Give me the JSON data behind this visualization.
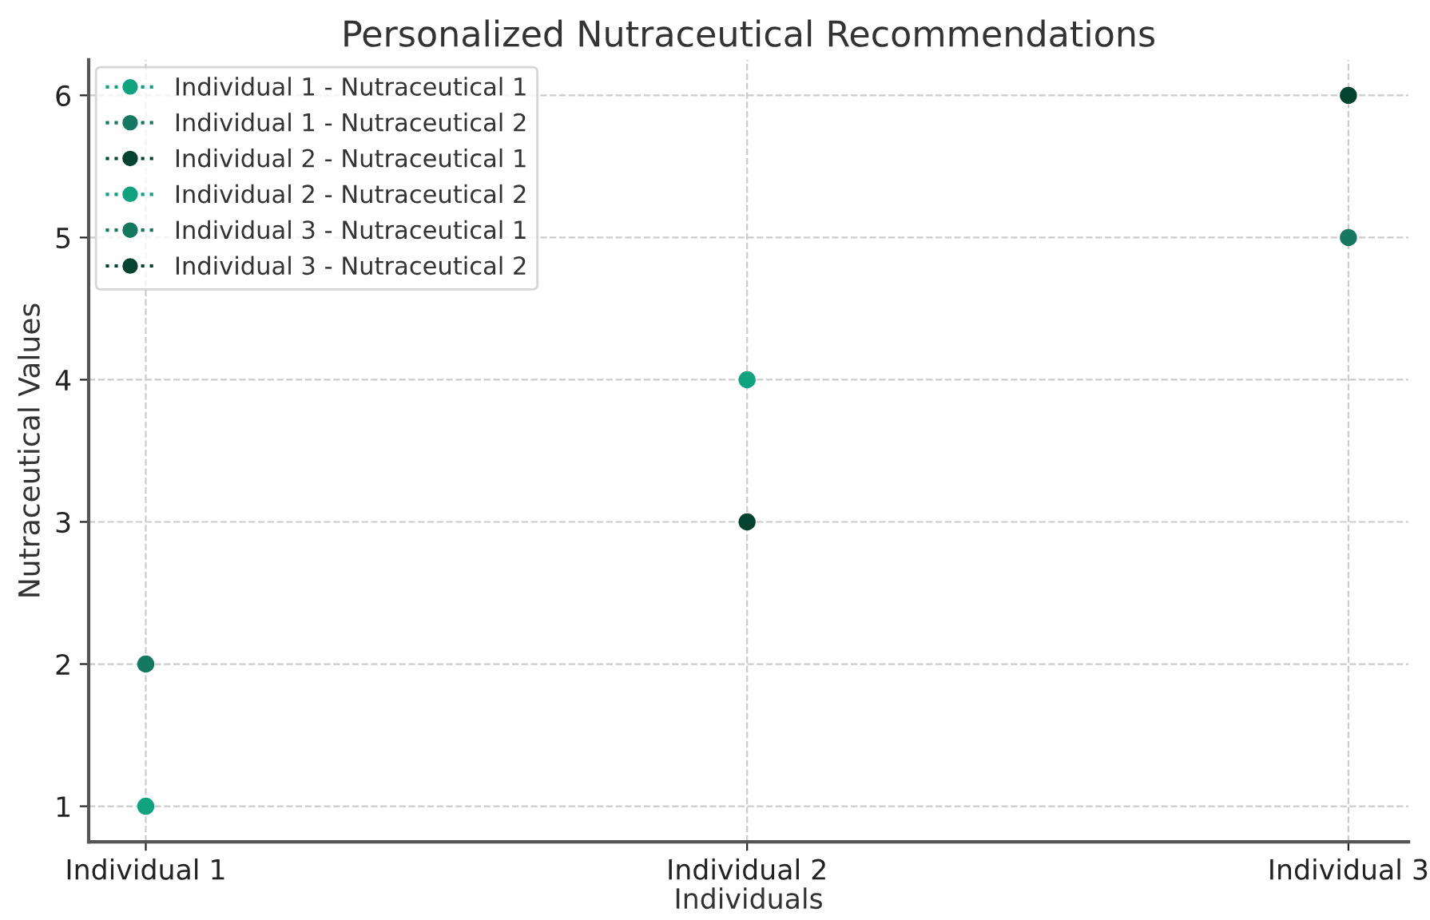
{
  "chart_data": {
    "type": "scatter",
    "title": "Personalized Nutraceutical Recommendations",
    "xlabel": "Individuals",
    "ylabel": "Nutraceutical Values",
    "categories": [
      "Individual 1",
      "Individual 2",
      "Individual 3"
    ],
    "series": [
      {
        "name": "Individual 1 - Nutraceutical 1",
        "color": "#10a37f",
        "values": [
          1,
          null,
          null
        ]
      },
      {
        "name": "Individual 1 - Nutraceutical 2",
        "color": "#147960",
        "values": [
          2,
          null,
          null
        ]
      },
      {
        "name": "Individual 2 - Nutraceutical 1",
        "color": "#024430",
        "values": [
          null,
          3,
          null
        ]
      },
      {
        "name": "Individual 2 - Nutraceutical 2",
        "color": "#10a37f",
        "values": [
          null,
          4,
          null
        ]
      },
      {
        "name": "Individual 3 - Nutraceutical 1",
        "color": "#147960",
        "values": [
          null,
          null,
          5
        ]
      },
      {
        "name": "Individual 3 - Nutraceutical 2",
        "color": "#024430",
        "values": [
          null,
          null,
          6
        ]
      }
    ],
    "ylim": [
      0.75,
      6.25
    ],
    "yticks": [
      1,
      2,
      3,
      4,
      5,
      6
    ],
    "grid": true,
    "legend": "top left",
    "marker": "circle",
    "line_style": "dotted"
  }
}
